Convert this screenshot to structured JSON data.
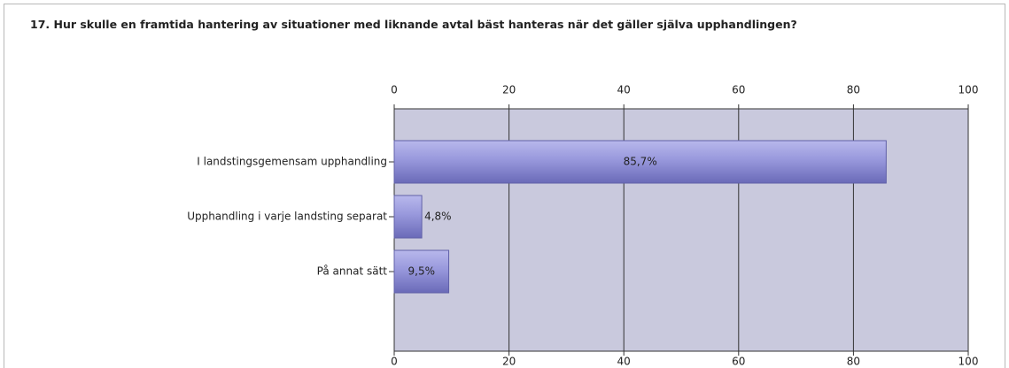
{
  "chart_data": {
    "type": "bar",
    "orientation": "horizontal",
    "title": "17. Hur skulle en framtida hantering av situationer med liknande avtal bäst hanteras när det gäller själva upphandlingen?",
    "categories": [
      "I landstingsgemensam upphandling",
      "Upphandling i varje landsting separat",
      "På annat sätt"
    ],
    "values": [
      85.7,
      4.8,
      9.5
    ],
    "value_labels": [
      "85,7%",
      "4,8%",
      "9,5%"
    ],
    "color": "#8a8ad2",
    "xlim": [
      0,
      100
    ],
    "xticks": [
      0,
      20,
      40,
      60,
      80,
      100
    ],
    "grid": true
  }
}
